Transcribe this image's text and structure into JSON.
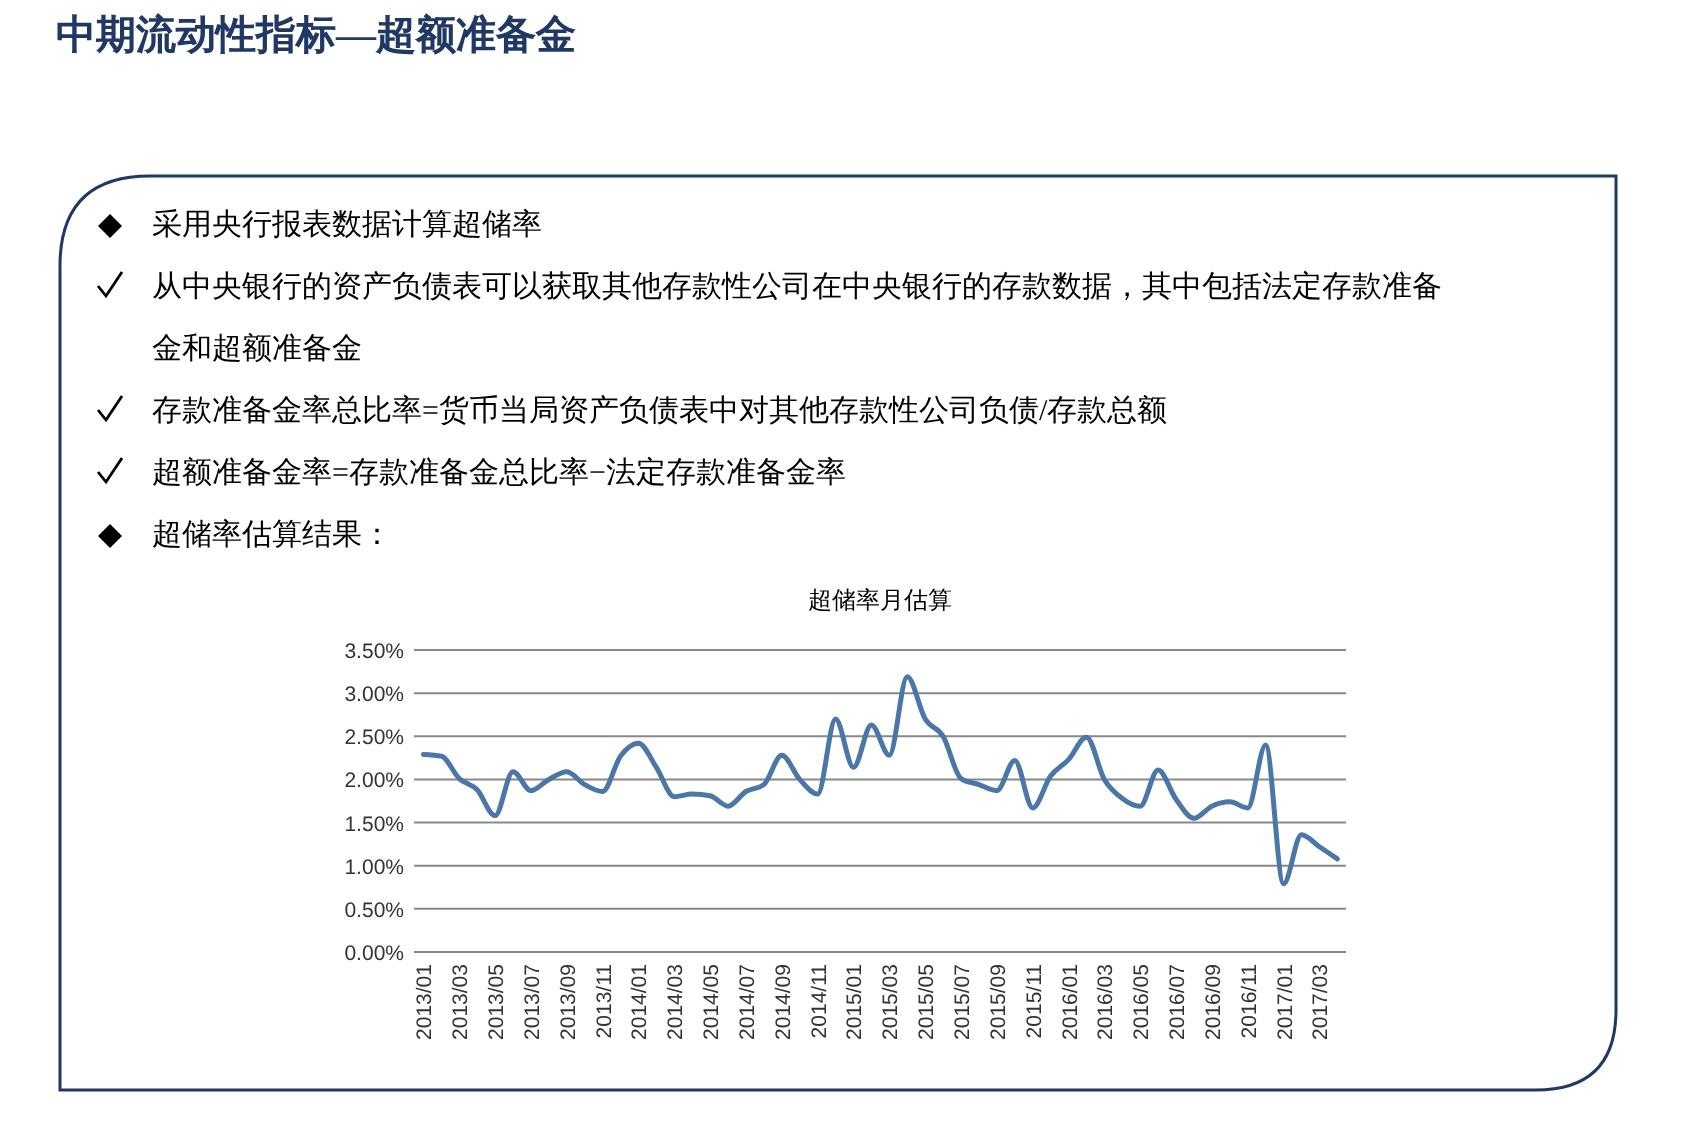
{
  "chart_data": {
    "type": "line",
    "title": "超储率月估算",
    "annotations": [
      "中期流动性指标—超额准备金",
      "采用央行报表数据计算超储率",
      "从中央银行的资产负债表可以获取其他存款性公司在中央银行的存款数据，其中包括法定存款准备金和超额准备金",
      "存款准备金率总比率=货币当局资产负债表中对其他存款性公司负债/存款总额",
      "超额准备金率=存款准备金总比率−法定存款准备金率",
      "超储率估算结果："
    ],
    "categories": [
      "2013/01",
      null,
      "2013/03",
      null,
      "2013/05",
      null,
      "2013/07",
      null,
      "2013/09",
      null,
      "2013/11",
      null,
      "2014/01",
      null,
      "2014/03",
      null,
      "2014/05",
      null,
      "2014/07",
      null,
      "2014/09",
      null,
      "2014/11",
      null,
      "2015/01",
      null,
      "2015/03",
      null,
      "2015/05",
      null,
      "2015/07",
      null,
      "2015/09",
      null,
      "2015/11",
      null,
      "2016/01",
      null,
      "2016/03",
      null,
      "2016/05",
      null,
      "2016/07",
      null,
      "2016/09",
      null,
      "2016/11",
      null,
      "2017/01",
      null,
      "2017/03",
      null
    ],
    "series": [
      {
        "color": "#4a76a8",
        "values": [
          2.29,
          2.27,
          2.01,
          1.88,
          1.58,
          2.09,
          1.87,
          2.0,
          2.09,
          1.94,
          1.86,
          2.27,
          2.42,
          2.14,
          1.8,
          1.83,
          1.81,
          1.69,
          1.86,
          1.94,
          2.28,
          2.0,
          1.83,
          2.7,
          2.14,
          2.63,
          2.28,
          3.19,
          2.7,
          2.5,
          2.01,
          1.94,
          1.87,
          2.22,
          1.67,
          2.04,
          2.23,
          2.49,
          2.0,
          1.78,
          1.69,
          2.11,
          1.77,
          1.55,
          1.69,
          1.74,
          1.67,
          2.4,
          0.79,
          1.36,
          1.22,
          1.08
        ]
      }
    ],
    "ylim": [
      0,
      3.5
    ],
    "yticks": [
      {
        "value": 0,
        "label": "0.00%"
      },
      {
        "value": 0.5,
        "label": "0.50%"
      },
      {
        "value": 1,
        "label": "1.00%"
      },
      {
        "value": 1.5,
        "label": "1.50%"
      },
      {
        "value": 2,
        "label": "2.00%"
      },
      {
        "value": 2.5,
        "label": "2.50%"
      },
      {
        "value": 3,
        "label": "3.00%"
      },
      {
        "value": 3.5,
        "label": "3.50%"
      }
    ],
    "grid": "y",
    "marker": "none",
    "line_style": "solid"
  }
}
